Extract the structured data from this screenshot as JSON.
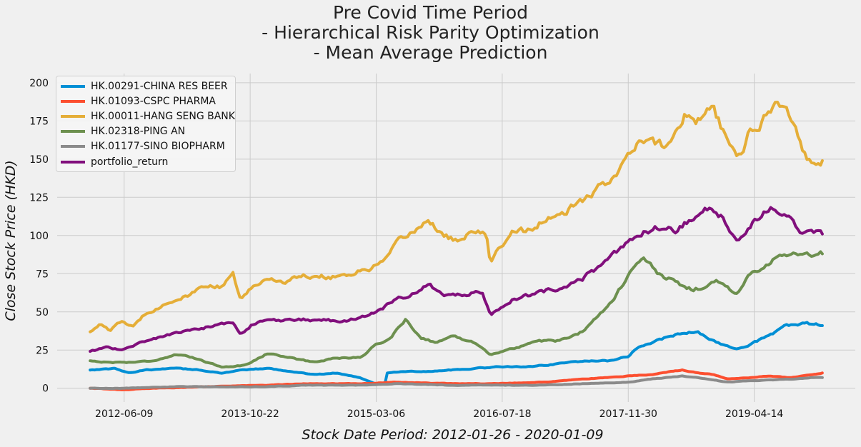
{
  "title_lines": [
    "Pre Covid Time Period",
    "- Hierarchical Risk Parity Optimization",
    "- Mean Average Prediction"
  ],
  "chart_data": {
    "type": "line",
    "title": "Pre Covid Time Period\n- Hierarchical Risk Parity Optimization\n- Mean Average Prediction",
    "xlabel": "Stock Date Period: 2012-01-26 - 2020-01-09",
    "ylabel": "Close Stock Price (HKD)",
    "x_range": [
      "2012-01-26",
      "2020-01-09"
    ],
    "ylim": [
      -9,
      206
    ],
    "yticks": [
      0,
      25,
      50,
      75,
      100,
      125,
      150,
      175,
      200
    ],
    "xticks": [
      "2012-06-09",
      "2013-10-22",
      "2015-03-06",
      "2016-07-18",
      "2017-11-30",
      "2019-04-14"
    ],
    "grid": true,
    "legend_position": "top-left",
    "series": [
      {
        "name": "HK.00291-CHINA RES BEER",
        "color": "#008fd5",
        "points": [
          [
            "2012-01-26",
            12
          ],
          [
            "2012-05-01",
            13
          ],
          [
            "2012-07-01",
            10
          ],
          [
            "2012-09-01",
            12
          ],
          [
            "2013-01-01",
            13
          ],
          [
            "2013-04-01",
            12
          ],
          [
            "2013-07-01",
            10
          ],
          [
            "2013-10-01",
            12
          ],
          [
            "2014-01-01",
            13
          ],
          [
            "2014-04-01",
            11
          ],
          [
            "2014-07-01",
            9
          ],
          [
            "2014-10-01",
            10
          ],
          [
            "2015-01-01",
            7
          ],
          [
            "2015-02-01",
            5
          ],
          [
            "2015-03-01",
            3
          ],
          [
            "2015-04-01",
            3
          ],
          [
            "2015-04-12",
            3
          ],
          [
            "2015-04-15",
            10
          ],
          [
            "2015-07-01",
            11
          ],
          [
            "2015-10-01",
            11
          ],
          [
            "2016-01-01",
            12
          ],
          [
            "2016-04-01",
            13
          ],
          [
            "2016-07-01",
            14
          ],
          [
            "2016-10-01",
            14
          ],
          [
            "2017-01-01",
            15
          ],
          [
            "2017-04-01",
            17
          ],
          [
            "2017-07-01",
            18
          ],
          [
            "2017-10-01",
            18
          ],
          [
            "2017-12-01",
            21
          ],
          [
            "2018-01-15",
            28
          ],
          [
            "2018-03-01",
            30
          ],
          [
            "2018-06-01",
            35
          ],
          [
            "2018-09-01",
            37
          ],
          [
            "2018-11-15",
            30
          ],
          [
            "2019-01-01",
            27
          ],
          [
            "2019-02-15",
            26
          ],
          [
            "2019-04-15",
            30
          ],
          [
            "2019-07-01",
            36
          ],
          [
            "2019-08-15",
            41
          ],
          [
            "2019-10-01",
            42
          ],
          [
            "2019-12-01",
            42
          ],
          [
            "2020-01-09",
            41
          ]
        ]
      },
      {
        "name": "HK.01093-CSPC PHARMA",
        "color": "#fc4f30",
        "points": [
          [
            "2012-01-26",
            0
          ],
          [
            "2012-06-01",
            -1
          ],
          [
            "2012-10-01",
            0
          ],
          [
            "2013-04-01",
            1
          ],
          [
            "2014-01-01",
            2
          ],
          [
            "2014-06-01",
            3
          ],
          [
            "2015-01-01",
            3
          ],
          [
            "2015-06-01",
            4
          ],
          [
            "2016-01-01",
            3
          ],
          [
            "2016-06-01",
            3
          ],
          [
            "2017-01-01",
            4
          ],
          [
            "2017-06-01",
            6
          ],
          [
            "2017-12-01",
            8
          ],
          [
            "2018-03-01",
            9
          ],
          [
            "2018-07-01",
            12
          ],
          [
            "2018-09-01",
            10
          ],
          [
            "2018-11-01",
            9
          ],
          [
            "2019-01-01",
            6
          ],
          [
            "2019-04-01",
            7
          ],
          [
            "2019-06-01",
            8
          ],
          [
            "2019-09-01",
            7
          ],
          [
            "2019-12-01",
            9
          ],
          [
            "2020-01-09",
            10
          ]
        ]
      },
      {
        "name": "HK.00011-HANG SENG BANK",
        "color": "#e5ae38",
        "points": [
          [
            "2012-01-26",
            37
          ],
          [
            "2012-03-01",
            42
          ],
          [
            "2012-04-15",
            38
          ],
          [
            "2012-06-01",
            44
          ],
          [
            "2012-07-15",
            40
          ],
          [
            "2012-09-01",
            49
          ],
          [
            "2012-11-01",
            54
          ],
          [
            "2013-01-01",
            58
          ],
          [
            "2013-03-01",
            61
          ],
          [
            "2013-05-01",
            68
          ],
          [
            "2013-07-01",
            66
          ],
          [
            "2013-08-15",
            74
          ],
          [
            "2013-09-15",
            58
          ],
          [
            "2013-11-01",
            66
          ],
          [
            "2014-01-01",
            72
          ],
          [
            "2014-03-01",
            70
          ],
          [
            "2014-06-01",
            74
          ],
          [
            "2014-09-01",
            73
          ],
          [
            "2014-12-01",
            75
          ],
          [
            "2015-02-01",
            78
          ],
          [
            "2015-04-01",
            82
          ],
          [
            "2015-06-01",
            95
          ],
          [
            "2015-08-01",
            103
          ],
          [
            "2015-10-01",
            110
          ],
          [
            "2015-12-01",
            100
          ],
          [
            "2016-02-01",
            96
          ],
          [
            "2016-04-01",
            103
          ],
          [
            "2016-05-15",
            100
          ],
          [
            "2016-06-01",
            82
          ],
          [
            "2016-07-01",
            90
          ],
          [
            "2016-09-01",
            104
          ],
          [
            "2016-11-01",
            103
          ],
          [
            "2017-01-01",
            110
          ],
          [
            "2017-03-01",
            112
          ],
          [
            "2017-05-01",
            119
          ],
          [
            "2017-07-01",
            126
          ],
          [
            "2017-09-01",
            134
          ],
          [
            "2017-11-01",
            146
          ],
          [
            "2018-01-15",
            160
          ],
          [
            "2018-03-01",
            162
          ],
          [
            "2018-05-01",
            158
          ],
          [
            "2018-07-15",
            180
          ],
          [
            "2018-09-01",
            175
          ],
          [
            "2018-11-01",
            185
          ],
          [
            "2019-01-01",
            158
          ],
          [
            "2019-02-15",
            153
          ],
          [
            "2019-04-01",
            170
          ],
          [
            "2019-05-15",
            176
          ],
          [
            "2019-07-15",
            189
          ],
          [
            "2019-09-01",
            180
          ],
          [
            "2019-10-15",
            160
          ],
          [
            "2019-11-15",
            150
          ],
          [
            "2019-12-15",
            148
          ],
          [
            "2020-01-09",
            149
          ]
        ]
      },
      {
        "name": "HK.02318-PING AN",
        "color": "#6d904f",
        "points": [
          [
            "2012-01-26",
            18
          ],
          [
            "2012-04-01",
            17
          ],
          [
            "2012-07-01",
            17
          ],
          [
            "2012-10-01",
            18
          ],
          [
            "2013-01-01",
            22
          ],
          [
            "2013-04-01",
            19
          ],
          [
            "2013-07-01",
            14
          ],
          [
            "2013-10-01",
            15
          ],
          [
            "2014-01-01",
            23
          ],
          [
            "2014-04-01",
            20
          ],
          [
            "2014-07-01",
            17
          ],
          [
            "2014-10-01",
            20
          ],
          [
            "2015-01-01",
            20
          ],
          [
            "2015-03-01",
            28
          ],
          [
            "2015-05-01",
            33
          ],
          [
            "2015-07-01",
            45
          ],
          [
            "2015-09-01",
            33
          ],
          [
            "2015-11-01",
            30
          ],
          [
            "2016-01-01",
            34
          ],
          [
            "2016-04-01",
            30
          ],
          [
            "2016-06-01",
            22
          ],
          [
            "2016-09-01",
            26
          ],
          [
            "2016-12-01",
            31
          ],
          [
            "2017-03-01",
            31
          ],
          [
            "2017-06-01",
            37
          ],
          [
            "2017-08-01",
            48
          ],
          [
            "2017-10-01",
            58
          ],
          [
            "2017-12-01",
            74
          ],
          [
            "2018-02-01",
            85
          ],
          [
            "2018-04-01",
            74
          ],
          [
            "2018-06-01",
            70
          ],
          [
            "2018-08-01",
            65
          ],
          [
            "2018-10-01",
            66
          ],
          [
            "2018-12-01",
            70
          ],
          [
            "2019-02-01",
            62
          ],
          [
            "2019-04-01",
            75
          ],
          [
            "2019-06-01",
            82
          ],
          [
            "2019-08-01",
            88
          ],
          [
            "2019-10-01",
            87
          ],
          [
            "2019-12-01",
            88
          ],
          [
            "2020-01-09",
            88
          ]
        ]
      },
      {
        "name": "HK.01177-SINO BIOPHARM",
        "color": "#8b8b8b",
        "points": [
          [
            "2012-01-26",
            0
          ],
          [
            "2012-06-01",
            0
          ],
          [
            "2013-01-01",
            1
          ],
          [
            "2014-01-01",
            1
          ],
          [
            "2014-06-01",
            2
          ],
          [
            "2015-01-01",
            2
          ],
          [
            "2015-06-01",
            3
          ],
          [
            "2016-01-01",
            2
          ],
          [
            "2016-06-01",
            2
          ],
          [
            "2017-01-01",
            2
          ],
          [
            "2017-06-01",
            3
          ],
          [
            "2017-12-01",
            4
          ],
          [
            "2018-03-01",
            6
          ],
          [
            "2018-07-01",
            8
          ],
          [
            "2018-09-01",
            7
          ],
          [
            "2019-01-01",
            4
          ],
          [
            "2019-04-01",
            5
          ],
          [
            "2019-09-01",
            6
          ],
          [
            "2019-12-01",
            7
          ],
          [
            "2020-01-09",
            7
          ]
        ]
      },
      {
        "name": "portfolio_return",
        "color": "#810f7c",
        "points": [
          [
            "2012-01-26",
            24
          ],
          [
            "2012-04-01",
            27
          ],
          [
            "2012-06-01",
            25
          ],
          [
            "2012-09-01",
            31
          ],
          [
            "2012-12-01",
            35
          ],
          [
            "2013-03-01",
            38
          ],
          [
            "2013-06-01",
            41
          ],
          [
            "2013-08-15",
            43
          ],
          [
            "2013-09-15",
            35
          ],
          [
            "2013-11-01",
            42
          ],
          [
            "2014-01-01",
            44
          ],
          [
            "2014-06-01",
            45
          ],
          [
            "2014-10-01",
            44
          ],
          [
            "2015-01-01",
            46
          ],
          [
            "2015-03-01",
            50
          ],
          [
            "2015-06-01",
            58
          ],
          [
            "2015-08-01",
            63
          ],
          [
            "2015-10-01",
            68
          ],
          [
            "2015-12-01",
            60
          ],
          [
            "2016-02-01",
            61
          ],
          [
            "2016-05-01",
            63
          ],
          [
            "2016-06-01",
            49
          ],
          [
            "2016-07-15",
            53
          ],
          [
            "2016-09-01",
            59
          ],
          [
            "2016-12-01",
            62
          ],
          [
            "2017-03-01",
            66
          ],
          [
            "2017-06-01",
            72
          ],
          [
            "2017-09-01",
            82
          ],
          [
            "2017-12-01",
            95
          ],
          [
            "2018-02-01",
            103
          ],
          [
            "2018-04-01",
            105
          ],
          [
            "2018-06-01",
            103
          ],
          [
            "2018-08-01",
            110
          ],
          [
            "2018-10-01",
            118
          ],
          [
            "2018-12-01",
            112
          ],
          [
            "2019-01-15",
            100
          ],
          [
            "2019-02-15",
            95
          ],
          [
            "2019-04-15",
            110
          ],
          [
            "2019-06-15",
            120
          ],
          [
            "2019-08-01",
            117
          ],
          [
            "2019-09-15",
            112
          ],
          [
            "2019-10-15",
            102
          ],
          [
            "2019-12-01",
            101
          ],
          [
            "2020-01-09",
            101
          ]
        ]
      }
    ]
  }
}
